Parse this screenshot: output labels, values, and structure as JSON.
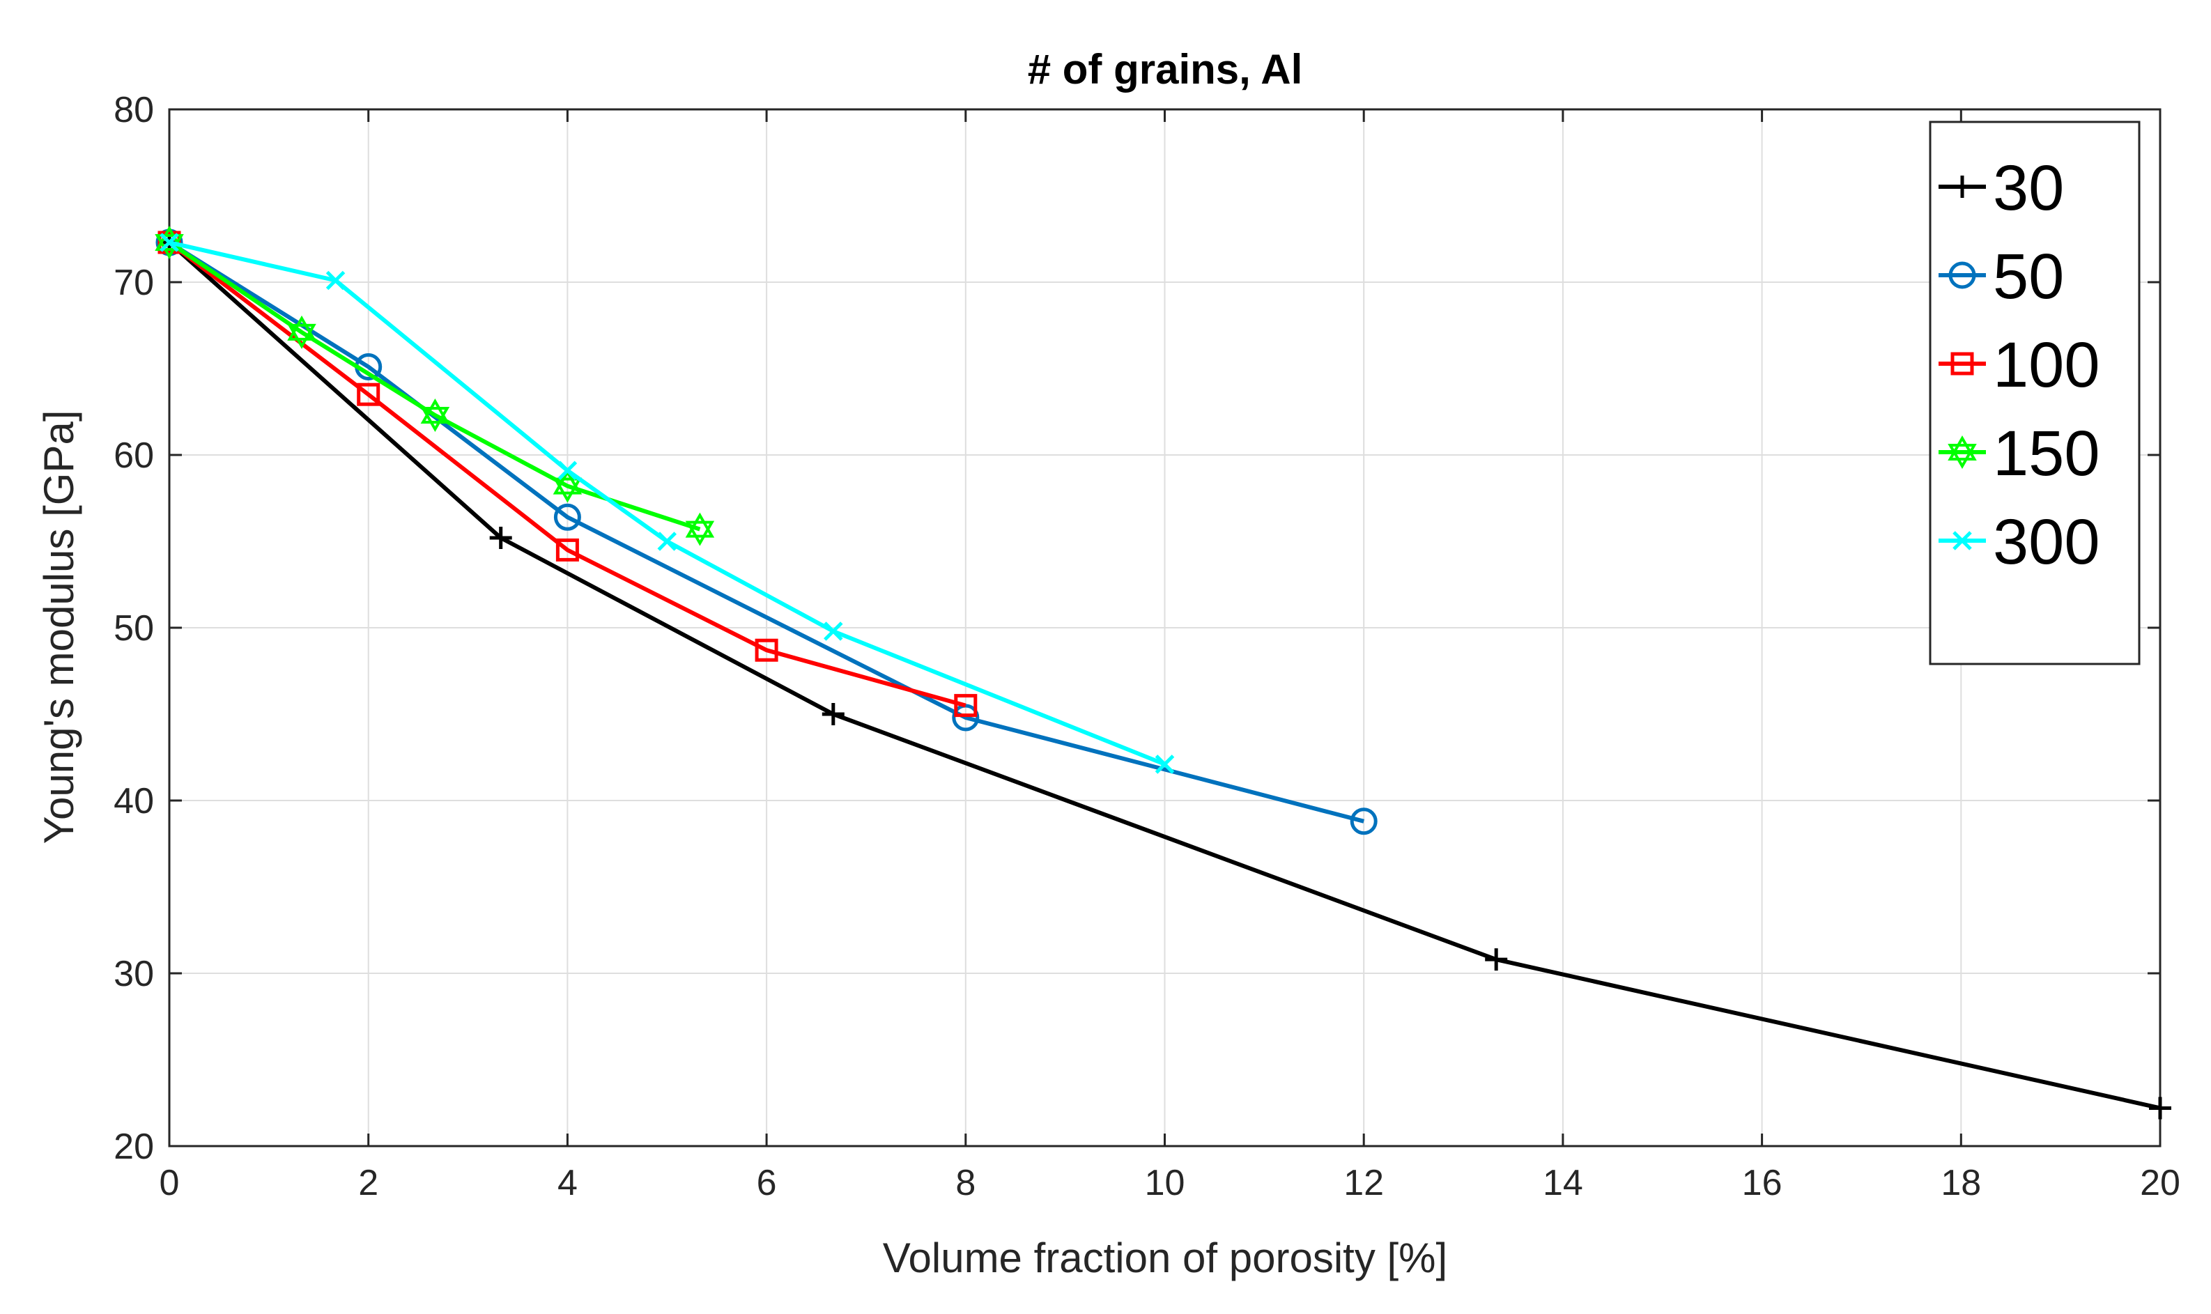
{
  "chart_data": {
    "type": "line",
    "title": "# of grains, Al",
    "xlabel": "Volume fraction of porosity [%]",
    "ylabel": "Young's modulus [GPa]",
    "xlim": [
      0,
      20
    ],
    "ylim": [
      20,
      80
    ],
    "xticks": [
      0,
      2,
      4,
      6,
      8,
      10,
      12,
      14,
      16,
      18,
      20
    ],
    "yticks": [
      20,
      30,
      40,
      50,
      60,
      70,
      80
    ],
    "grid": true,
    "legend_position": "top-right",
    "series": [
      {
        "name": "30",
        "color": "#000000",
        "marker": "plus",
        "x": [
          0,
          3.33,
          6.67,
          13.33,
          20
        ],
        "y": [
          72.3,
          55.2,
          45.0,
          30.8,
          22.2
        ]
      },
      {
        "name": "50",
        "color": "#0072BD",
        "marker": "circle",
        "x": [
          0,
          2,
          4,
          8,
          12
        ],
        "y": [
          72.3,
          65.1,
          56.4,
          44.8,
          38.8
        ]
      },
      {
        "name": "100",
        "color": "#FF0000",
        "marker": "square",
        "x": [
          0,
          2,
          4,
          6,
          8
        ],
        "y": [
          72.3,
          63.5,
          54.5,
          48.7,
          45.5
        ]
      },
      {
        "name": "150",
        "color": "#00FF00",
        "marker": "hexagram",
        "x": [
          0,
          1.33,
          2.67,
          4,
          5.33
        ],
        "y": [
          72.3,
          67.1,
          62.3,
          58.2,
          55.7
        ]
      },
      {
        "name": "300",
        "color": "#00FFFF",
        "marker": "x",
        "x": [
          0,
          1.67,
          4,
          5,
          6.67,
          10
        ],
        "y": [
          72.3,
          70.1,
          59.1,
          55.0,
          49.8,
          42.1
        ]
      }
    ]
  }
}
